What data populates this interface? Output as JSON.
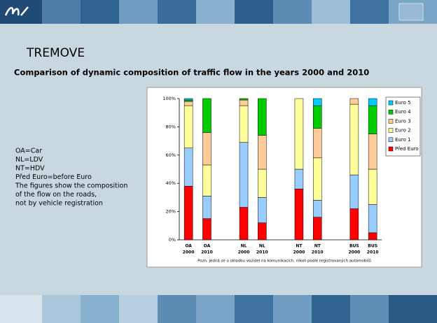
{
  "slide": {
    "title": "TREMOVE",
    "subtitle": "Comparison of dynamic composition of traffic flow in the years 2000 and 2010",
    "notes": [
      "OA=Car",
      "NL=LDV",
      "NT=HDV",
      "Před Euro=before Euro",
      "The figures show the composition",
      "of the flow on the roads,",
      "not by vehicle registration"
    ]
  },
  "chart_data": {
    "type": "stacked_bar",
    "note": "Pozn. jedná se o skladbu vozidel na komunikacích, nikoli podle registrovaných automobilů",
    "categories": [
      [
        "OA",
        "2000"
      ],
      [
        "OA",
        "2010"
      ],
      null,
      [
        "NL",
        "2000"
      ],
      [
        "NL",
        "2010"
      ],
      null,
      [
        "NT",
        "2000"
      ],
      [
        "NT",
        "2010"
      ],
      null,
      [
        "BUS",
        "2000"
      ],
      [
        "BUS",
        "2010"
      ]
    ],
    "series": [
      {
        "name": "Před Euro",
        "color": "#ff0000",
        "values": [
          38,
          15,
          null,
          23,
          12,
          null,
          36,
          16,
          null,
          22,
          5
        ]
      },
      {
        "name": "Euro 1",
        "color": "#99ccff",
        "values": [
          27,
          16,
          null,
          46,
          18,
          null,
          14,
          12,
          null,
          24,
          20
        ]
      },
      {
        "name": "Euro 2",
        "color": "#ffff99",
        "values": [
          30,
          22,
          null,
          26,
          20,
          null,
          50,
          30,
          null,
          50,
          25
        ]
      },
      {
        "name": "Euro 3",
        "color": "#ffcc99",
        "values": [
          3,
          23,
          null,
          4,
          24,
          null,
          0,
          21,
          null,
          4,
          25
        ]
      },
      {
        "name": "Euro 4",
        "color": "#00cc00",
        "values": [
          1,
          24,
          null,
          1,
          26,
          null,
          0,
          16,
          null,
          0,
          20
        ]
      },
      {
        "name": "Euro 5",
        "color": "#00ccff",
        "values": [
          1,
          0,
          null,
          0,
          0,
          null,
          0,
          5,
          null,
          0,
          5
        ]
      }
    ],
    "ylim": [
      0,
      100
    ],
    "yticks": [
      {
        "value": 0,
        "label": "0%"
      },
      {
        "value": 20,
        "label": "20%"
      },
      {
        "value": 40,
        "label": "40%"
      },
      {
        "value": 60,
        "label": "60%"
      },
      {
        "value": 80,
        "label": "80%"
      },
      {
        "value": 100,
        "label": "100%"
      }
    ],
    "grid": false,
    "legend": "right"
  }
}
